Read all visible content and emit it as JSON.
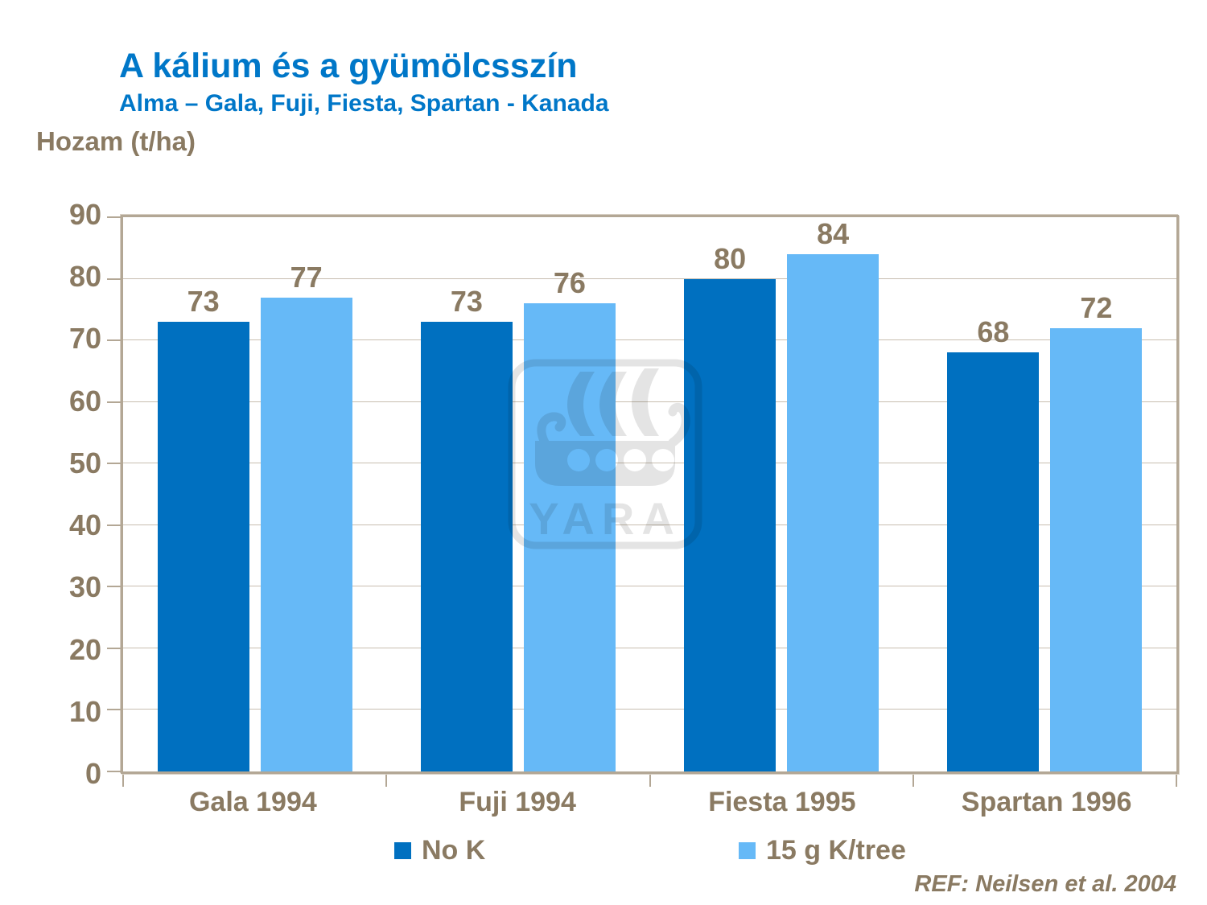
{
  "header": {
    "title": "A kálium és a gyümölcsszín",
    "subtitle": "Alma – Gala, Fuji, Fiesta, Spartan - Kanada"
  },
  "chart_data": {
    "type": "bar",
    "title": "A kálium és a gyümölcsszín",
    "subtitle": "Alma – Gala, Fuji, Fiesta, Spartan - Kanada",
    "categories": [
      "Gala 1994",
      "Fuji 1994",
      "Fiesta 1995",
      "Spartan 1996"
    ],
    "series": [
      {
        "name": "No K",
        "color": "#0070C0",
        "values": [
          73,
          73,
          80,
          68
        ]
      },
      {
        "name": "15 g K/tree",
        "color": "#66B9F7",
        "values": [
          77,
          76,
          84,
          72
        ]
      }
    ],
    "xlabel": "",
    "ylabel": "Hozam (t/ha)",
    "ylim": [
      0,
      90
    ],
    "ytick_step": 10,
    "grid": true,
    "legend_position": "bottom",
    "data_labels": true
  },
  "watermark": {
    "text": "YARA"
  },
  "footer": {
    "ref": "REF: Neilsen et al. 2004"
  },
  "colors": {
    "title_blue": "#0077C8",
    "bar_dark_blue": "#0070C0",
    "bar_light_blue": "#66B9F7",
    "text_brown": "#8A7A62",
    "gridline": "#C8BEB0",
    "axis_frame": "#B3A795",
    "watermark_gray": "#E4E4E4"
  }
}
